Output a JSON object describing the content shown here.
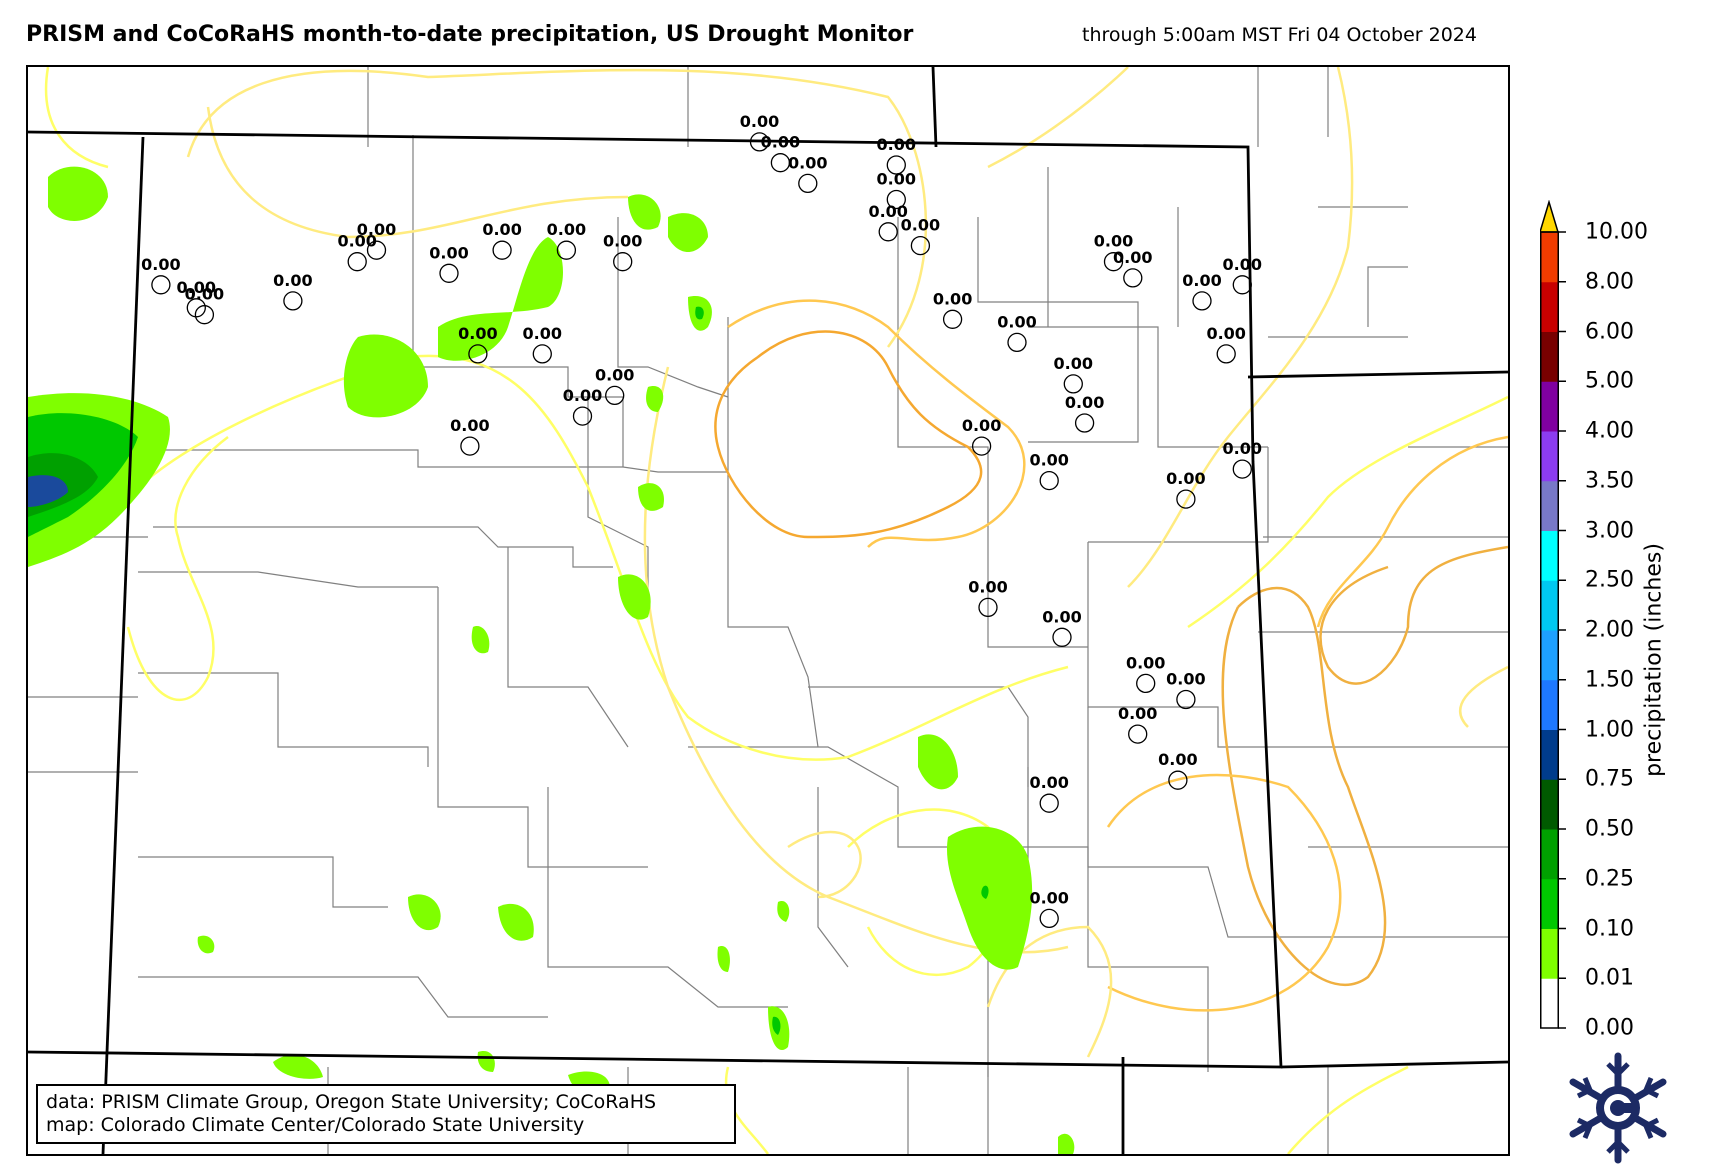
{
  "title": "PRISM and CoCoRaHS month-to-date precipitation, US Drought Monitor",
  "subtitle": "through 5:00am MST Fri 04 October 2024",
  "credits": {
    "line1": "data: PRISM Climate Group, Oregon State University; CoCoRaHS",
    "line2": "map: Colorado Climate Center/Colorado State University"
  },
  "colorbar": {
    "label": "precipitation (inches)",
    "ticks": [
      "0.00",
      "0.01",
      "0.10",
      "0.25",
      "0.50",
      "0.75",
      "1.00",
      "1.50",
      "2.00",
      "2.50",
      "3.00",
      "3.50",
      "4.00",
      "5.00",
      "6.00",
      "8.00",
      "10.00"
    ],
    "colors": [
      "#ffffff",
      "#7fff00",
      "#00c800",
      "#00a000",
      "#005a00",
      "#003c8c",
      "#1e78ff",
      "#1ea0ff",
      "#00c8f0",
      "#00ffff",
      "#7878c8",
      "#8c3cf0",
      "#8000a0",
      "#780000",
      "#c80000",
      "#f03c00",
      "#ff8c00",
      "#ffd700"
    ]
  },
  "map_data": {
    "type": "station-map",
    "stations": [
      {
        "lon": -105.2,
        "lat": 40.97,
        "value": "0.00"
      },
      {
        "lon": -105.07,
        "lat": 40.88,
        "value": "0.00"
      },
      {
        "lon": -104.9,
        "lat": 40.79,
        "value": "0.00"
      },
      {
        "lon": -104.35,
        "lat": 40.87,
        "value": "0.00"
      },
      {
        "lon": -104.35,
        "lat": 40.72,
        "value": "0.00"
      },
      {
        "lon": -104.4,
        "lat": 40.58,
        "value": "0.00"
      },
      {
        "lon": -104.2,
        "lat": 40.52,
        "value": "0.00"
      },
      {
        "lon": -104.0,
        "lat": 40.2,
        "value": "0.00"
      },
      {
        "lon": -103.0,
        "lat": 40.45,
        "value": "0.00"
      },
      {
        "lon": -102.88,
        "lat": 40.38,
        "value": "0.00"
      },
      {
        "lon": -102.45,
        "lat": 40.28,
        "value": "0.00"
      },
      {
        "lon": -102.3,
        "lat": 40.05,
        "value": "0.00"
      },
      {
        "lon": -102.2,
        "lat": 40.35,
        "value": "0.00"
      },
      {
        "lon": -102.2,
        "lat": 39.55,
        "value": "0.00"
      },
      {
        "lon": -103.6,
        "lat": 40.1,
        "value": "0.00"
      },
      {
        "lon": -103.25,
        "lat": 39.92,
        "value": "0.00"
      },
      {
        "lon": -103.18,
        "lat": 39.75,
        "value": "0.00"
      },
      {
        "lon": -103.82,
        "lat": 39.65,
        "value": "0.00"
      },
      {
        "lon": -103.4,
        "lat": 39.5,
        "value": "0.00"
      },
      {
        "lon": -102.55,
        "lat": 39.42,
        "value": "0.00"
      },
      {
        "lon": -103.32,
        "lat": 38.82,
        "value": "0.00"
      },
      {
        "lon": -102.8,
        "lat": 38.62,
        "value": "0.00"
      },
      {
        "lon": -102.85,
        "lat": 38.4,
        "value": "0.00"
      },
      {
        "lon": -102.55,
        "lat": 38.55,
        "value": "0.00"
      },
      {
        "lon": -103.78,
        "lat": 38.95,
        "value": "0.00"
      },
      {
        "lon": -103.4,
        "lat": 38.1,
        "value": "0.00"
      },
      {
        "lon": -103.4,
        "lat": 37.6,
        "value": "0.00"
      },
      {
        "lon": -102.6,
        "lat": 38.2,
        "value": "0.00"
      },
      {
        "lon": -108.92,
        "lat": 40.35,
        "value": "0.00"
      },
      {
        "lon": -108.7,
        "lat": 40.25,
        "value": "0.00"
      },
      {
        "lon": -108.65,
        "lat": 40.22,
        "value": "0.00"
      },
      {
        "lon": -107.7,
        "lat": 40.45,
        "value": "0.00"
      },
      {
        "lon": -107.58,
        "lat": 40.5,
        "value": "0.00"
      },
      {
        "lon": -107.13,
        "lat": 40.4,
        "value": "0.00"
      },
      {
        "lon": -106.8,
        "lat": 40.5,
        "value": "0.00"
      },
      {
        "lon": -106.4,
        "lat": 40.5,
        "value": "0.00"
      },
      {
        "lon": -106.05,
        "lat": 40.45,
        "value": "0.00"
      },
      {
        "lon": -108.1,
        "lat": 40.28,
        "value": "0.00"
      },
      {
        "lon": -106.95,
        "lat": 40.05,
        "value": "0.00"
      },
      {
        "lon": -106.55,
        "lat": 40.05,
        "value": "0.00"
      },
      {
        "lon": -106.1,
        "lat": 39.87,
        "value": "0.00"
      },
      {
        "lon": -107.0,
        "lat": 39.65,
        "value": "0.00"
      },
      {
        "lon": -106.3,
        "lat": 39.78,
        "value": "0.00"
      }
    ]
  }
}
